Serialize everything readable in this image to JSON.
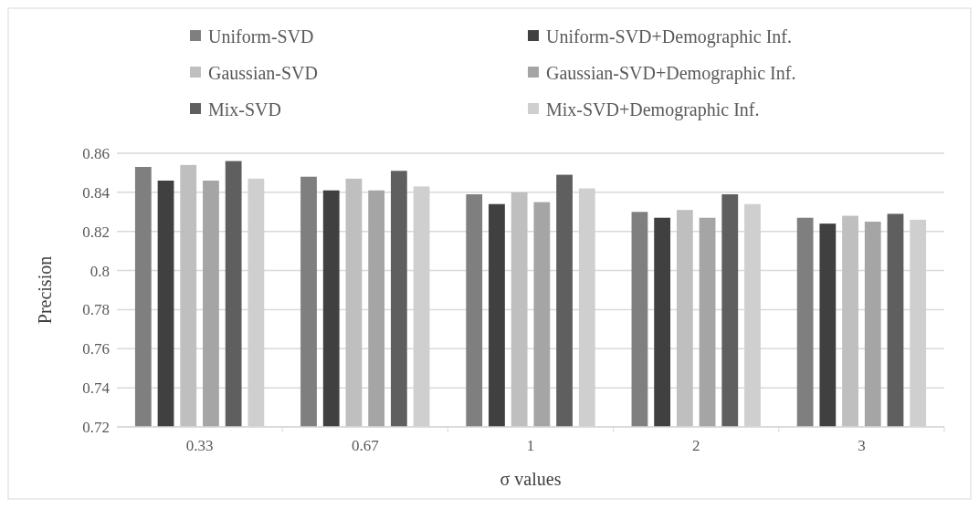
{
  "chart_data": {
    "type": "bar",
    "categories": [
      "0.33",
      "0.67",
      "1",
      "2",
      "3"
    ],
    "series": [
      {
        "name": "Uniform-SVD",
        "color": "#7f7f7f",
        "values": [
          0.853,
          0.848,
          0.839,
          0.83,
          0.827
        ]
      },
      {
        "name": "Uniform-SVD+Demographic Inf.",
        "color": "#404040",
        "values": [
          0.846,
          0.841,
          0.834,
          0.827,
          0.824
        ]
      },
      {
        "name": "Gaussian-SVD",
        "color": "#bfbfbf",
        "values": [
          0.854,
          0.847,
          0.84,
          0.831,
          0.828
        ]
      },
      {
        "name": "Gaussian-SVD+Demographic Inf.",
        "color": "#a5a5a5",
        "values": [
          0.846,
          0.841,
          0.835,
          0.827,
          0.825
        ]
      },
      {
        "name": "Mix-SVD",
        "color": "#5f5f5f",
        "values": [
          0.856,
          0.851,
          0.849,
          0.839,
          0.829
        ]
      },
      {
        "name": "Mix-SVD+Demographic Inf.",
        "color": "#d0cfcf",
        "values": [
          0.847,
          0.843,
          0.842,
          0.834,
          0.826
        ]
      }
    ],
    "ylim": [
      0.72,
      0.86
    ],
    "yticks": [
      0.72,
      0.74,
      0.76,
      0.78,
      0.8,
      0.82,
      0.84,
      0.86
    ],
    "ylabel": "Precision",
    "xlabel": "σ values",
    "grid": "y",
    "legend": "top"
  }
}
